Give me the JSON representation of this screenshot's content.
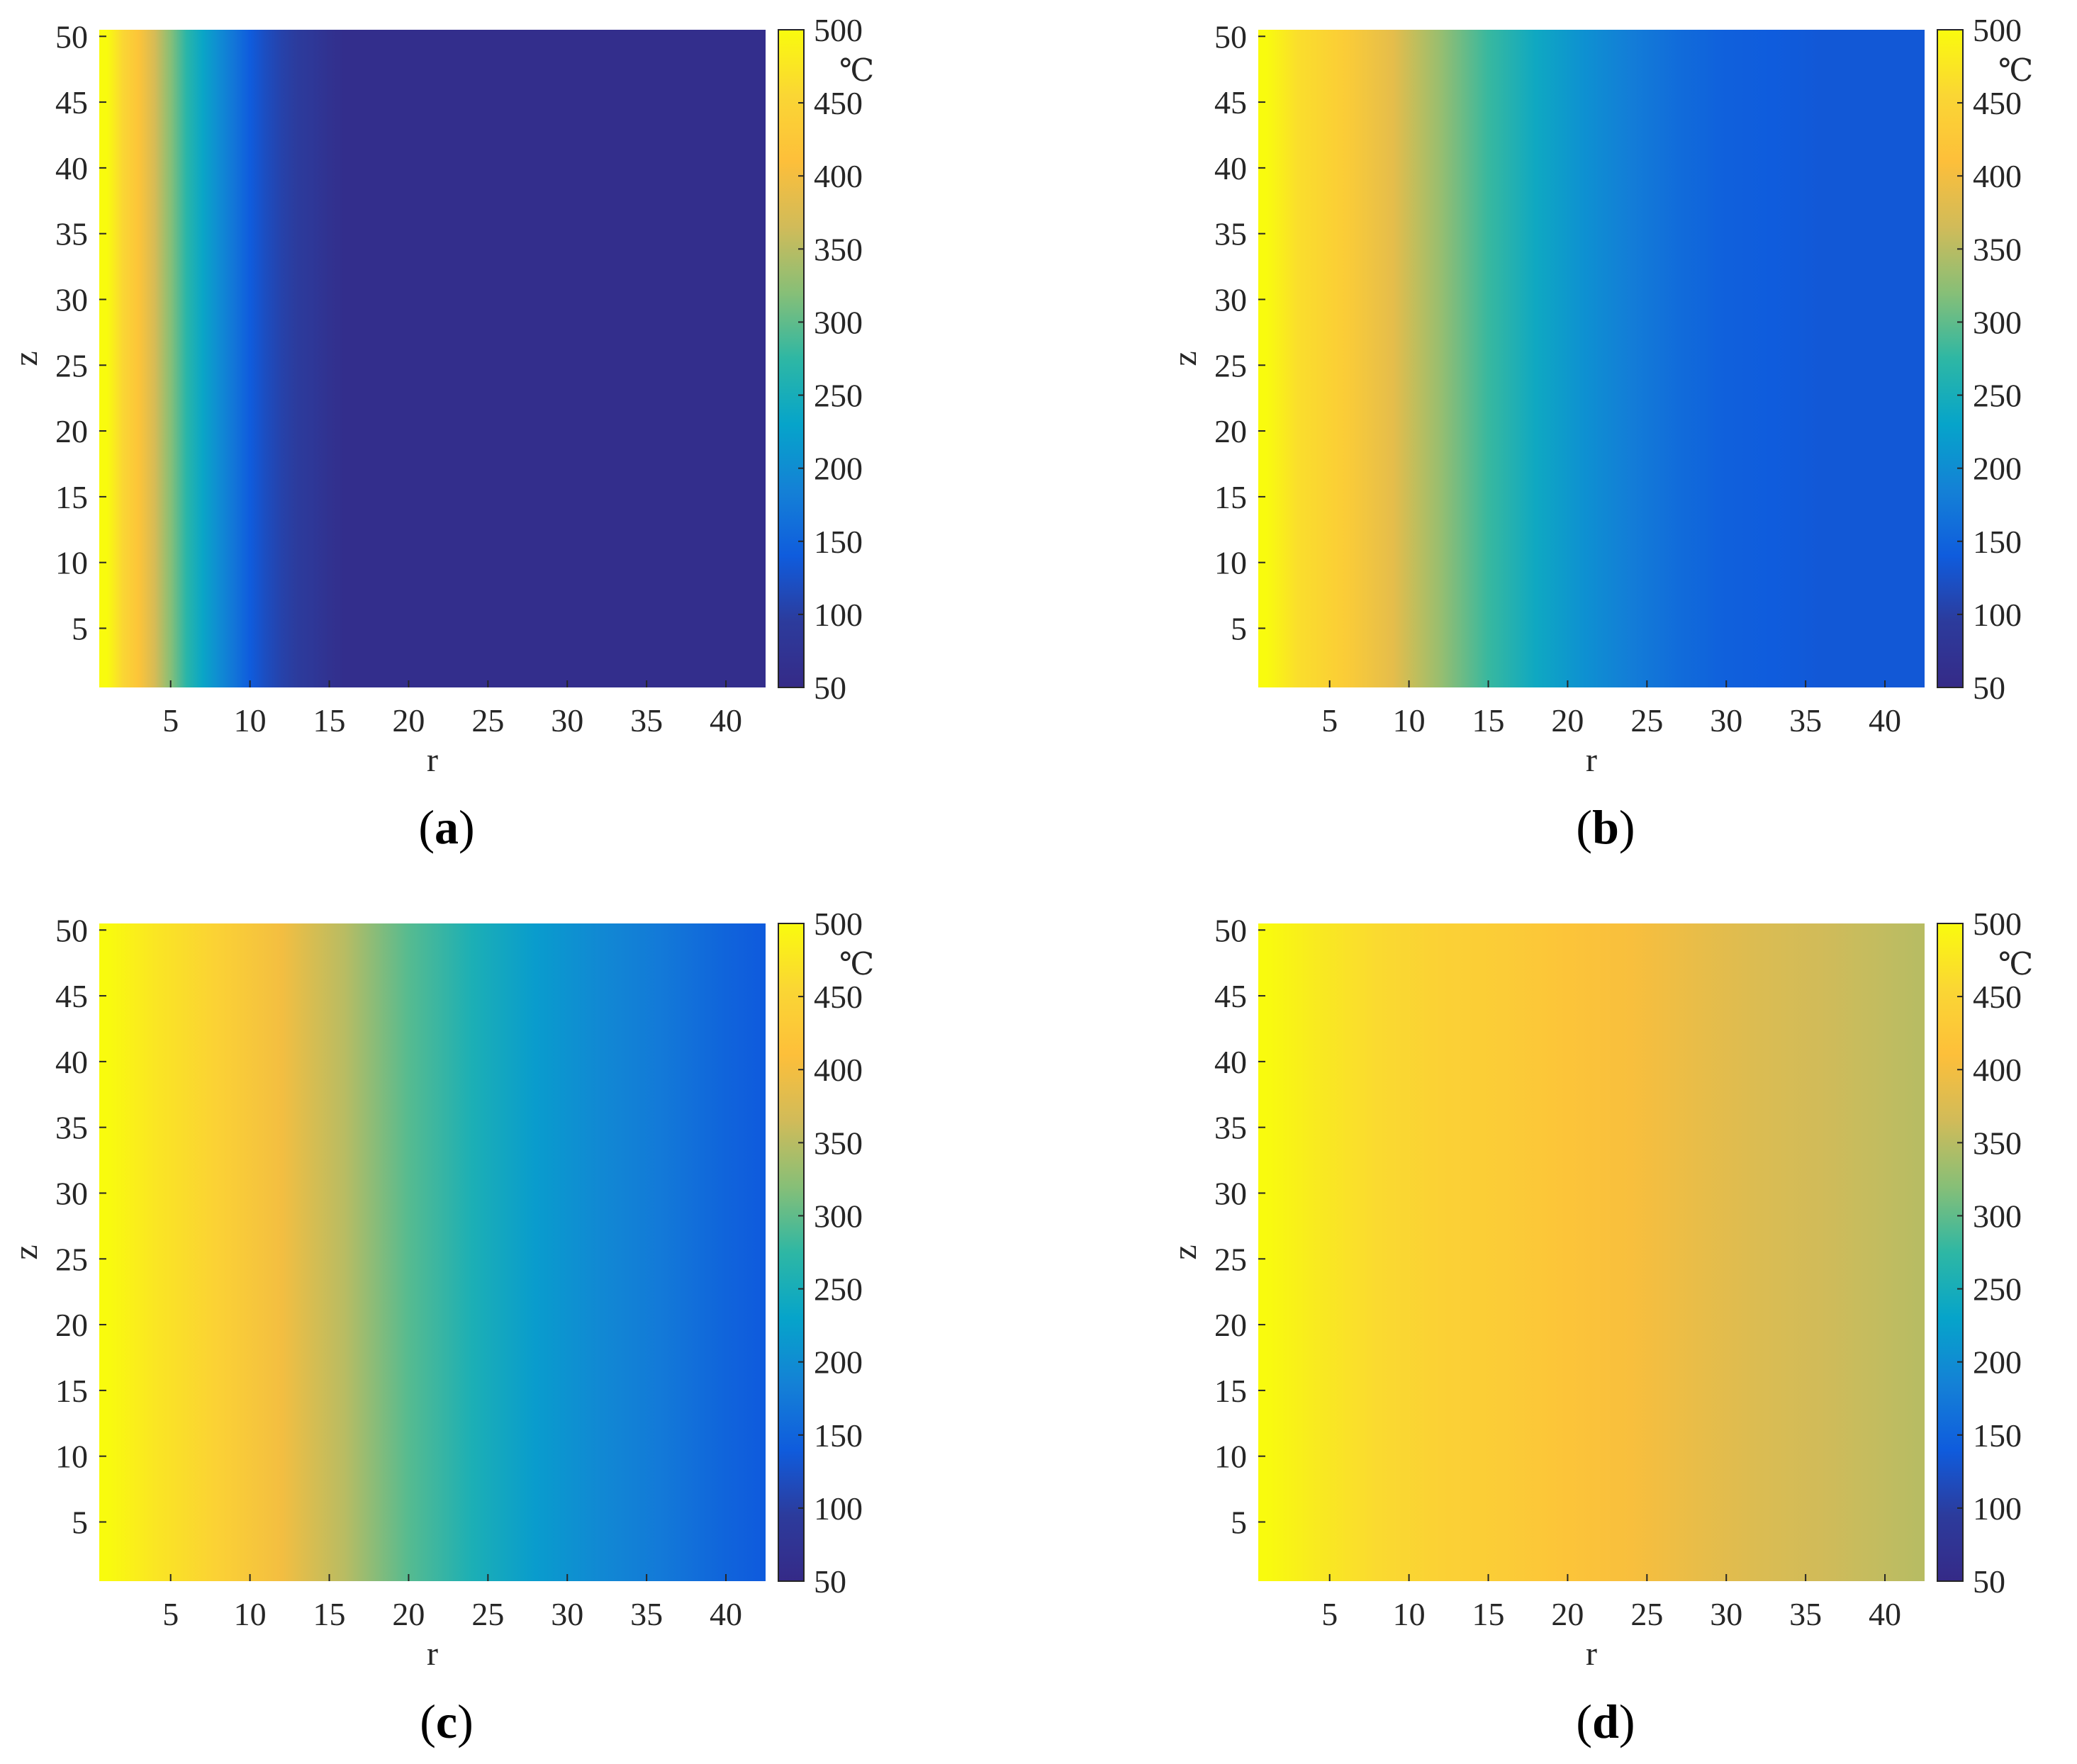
{
  "chart_data": [
    {
      "type": "heatmap",
      "panel_label": "a",
      "xlabel": "r",
      "ylabel": "z",
      "xlim": [
        0.5,
        42.5
      ],
      "ylim": [
        0.5,
        50.5
      ],
      "x_ticks": [
        5,
        10,
        15,
        20,
        25,
        30,
        35,
        40
      ],
      "y_ticks": [
        5,
        10,
        15,
        20,
        25,
        30,
        35,
        40,
        45,
        50
      ],
      "colorbar": {
        "min": 50,
        "max": 500,
        "ticks": [
          50,
          100,
          150,
          200,
          250,
          300,
          350,
          400,
          450,
          500
        ],
        "unit": "℃"
      },
      "profile": {
        "r": [
          1,
          2,
          3,
          4,
          5,
          6,
          7,
          8,
          9,
          10,
          11,
          12,
          13,
          14,
          15,
          16,
          20,
          30,
          42
        ],
        "temperature": [
          500,
          455,
          420,
          370,
          320,
          270,
          235,
          200,
          170,
          140,
          120,
          105,
          95,
          85,
          70,
          60,
          60,
          60,
          60
        ]
      }
    },
    {
      "type": "heatmap",
      "panel_label": "b",
      "xlabel": "r",
      "ylabel": "z",
      "xlim": [
        0.5,
        42.5
      ],
      "ylim": [
        0.5,
        50.5
      ],
      "x_ticks": [
        5,
        10,
        15,
        20,
        25,
        30,
        35,
        40
      ],
      "y_ticks": [
        5,
        10,
        15,
        20,
        25,
        30,
        35,
        40,
        45,
        50
      ],
      "colorbar": {
        "min": 50,
        "max": 500,
        "ticks": [
          50,
          100,
          150,
          200,
          250,
          300,
          350,
          400,
          450,
          500
        ],
        "unit": "℃"
      },
      "profile": {
        "r": [
          1,
          3,
          6,
          9,
          12,
          15,
          18,
          21,
          24,
          27,
          30,
          33,
          36,
          42
        ],
        "temperature": [
          500,
          465,
          435,
          385,
          330,
          280,
          240,
          205,
          180,
          160,
          145,
          140,
          135,
          135
        ]
      }
    },
    {
      "type": "heatmap",
      "panel_label": "c",
      "xlabel": "r",
      "ylabel": "z",
      "xlim": [
        0.5,
        42.5
      ],
      "ylim": [
        0.5,
        50.5
      ],
      "x_ticks": [
        5,
        10,
        15,
        20,
        25,
        30,
        35,
        40
      ],
      "y_ticks": [
        5,
        10,
        15,
        20,
        25,
        30,
        35,
        40,
        45,
        50
      ],
      "colorbar": {
        "min": 50,
        "max": 500,
        "ticks": [
          50,
          100,
          150,
          200,
          250,
          300,
          350,
          400,
          450,
          500
        ],
        "unit": "℃"
      },
      "profile": {
        "r": [
          1,
          4,
          8,
          12,
          16,
          20,
          24,
          28,
          32,
          36,
          40,
          42
        ],
        "temperature": [
          500,
          475,
          445,
          400,
          350,
          295,
          255,
          220,
          195,
          175,
          150,
          140
        ]
      }
    },
    {
      "type": "heatmap",
      "panel_label": "d",
      "xlabel": "r",
      "ylabel": "z",
      "xlim": [
        0.5,
        42.5
      ],
      "ylim": [
        0.5,
        50.5
      ],
      "x_ticks": [
        5,
        10,
        15,
        20,
        25,
        30,
        35,
        40
      ],
      "y_ticks": [
        5,
        10,
        15,
        20,
        25,
        30,
        35,
        40,
        45,
        50
      ],
      "colorbar": {
        "min": 50,
        "max": 500,
        "ticks": [
          50,
          100,
          150,
          200,
          250,
          300,
          350,
          400,
          450,
          500
        ],
        "unit": "℃"
      },
      "profile": {
        "r": [
          1,
          4,
          8,
          12,
          16,
          20,
          24,
          28,
          32,
          36,
          40,
          42
        ],
        "temperature": [
          500,
          480,
          460,
          445,
          435,
          420,
          405,
          390,
          375,
          365,
          355,
          350
        ]
      }
    }
  ]
}
